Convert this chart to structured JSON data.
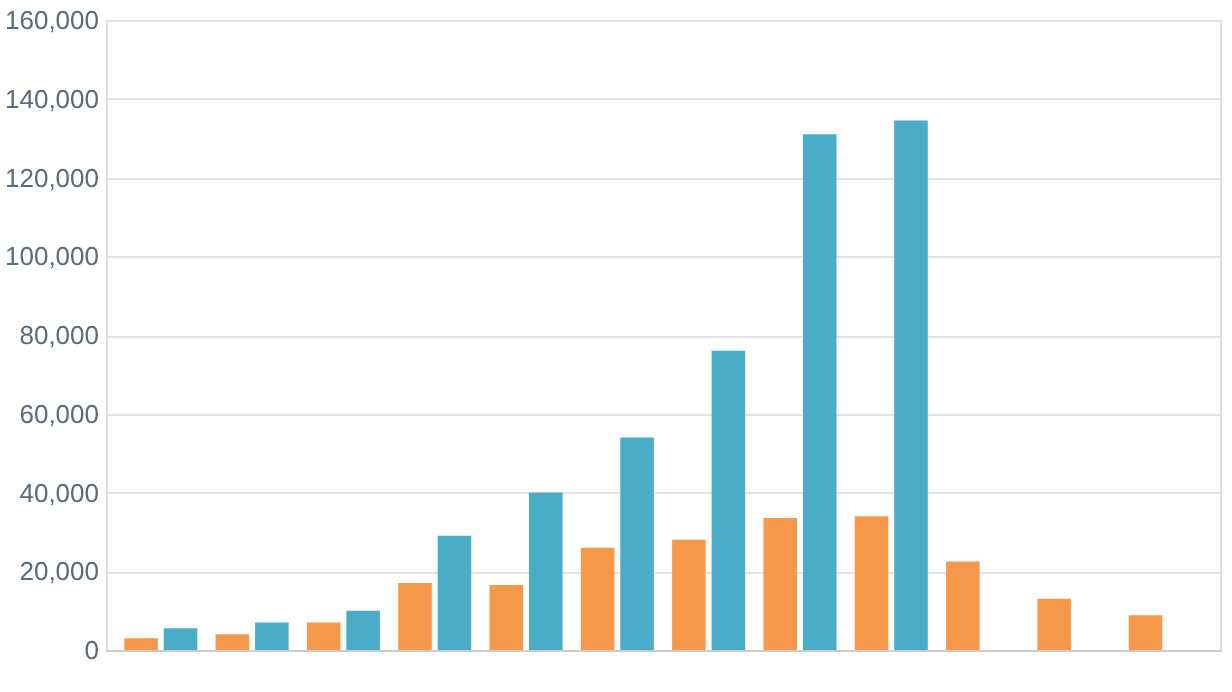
{
  "chart_data": {
    "type": "bar",
    "categories": [
      null,
      null,
      null,
      null,
      null,
      null,
      null,
      null,
      null,
      null,
      null,
      null
    ],
    "series": [
      {
        "color": "#f5984a",
        "values": [
          3000,
          4000,
          7000,
          17000,
          16500,
          26000,
          28000,
          33500,
          34000,
          22500,
          13000,
          8800
        ]
      },
      {
        "color": "#4aadc7",
        "values": [
          5500,
          7000,
          10000,
          29000,
          40000,
          54000,
          76000,
          131000,
          134500,
          null,
          null,
          null
        ]
      }
    ],
    "ylim": [
      0,
      160000
    ],
    "yticks": [
      {
        "value": 0,
        "label": "0"
      },
      {
        "value": 20000,
        "label": "20,000"
      },
      {
        "value": 40000,
        "label": "40,000"
      },
      {
        "value": 60000,
        "label": "60,000"
      },
      {
        "value": 80000,
        "label": "80,000"
      },
      {
        "value": 100000,
        "label": "100,000"
      },
      {
        "value": 120000,
        "label": "120,000"
      },
      {
        "value": 140000,
        "label": "140,000"
      },
      {
        "value": 160000,
        "label": "160,000"
      }
    ],
    "grid": "y",
    "legend": false,
    "tick_labels": "y"
  }
}
